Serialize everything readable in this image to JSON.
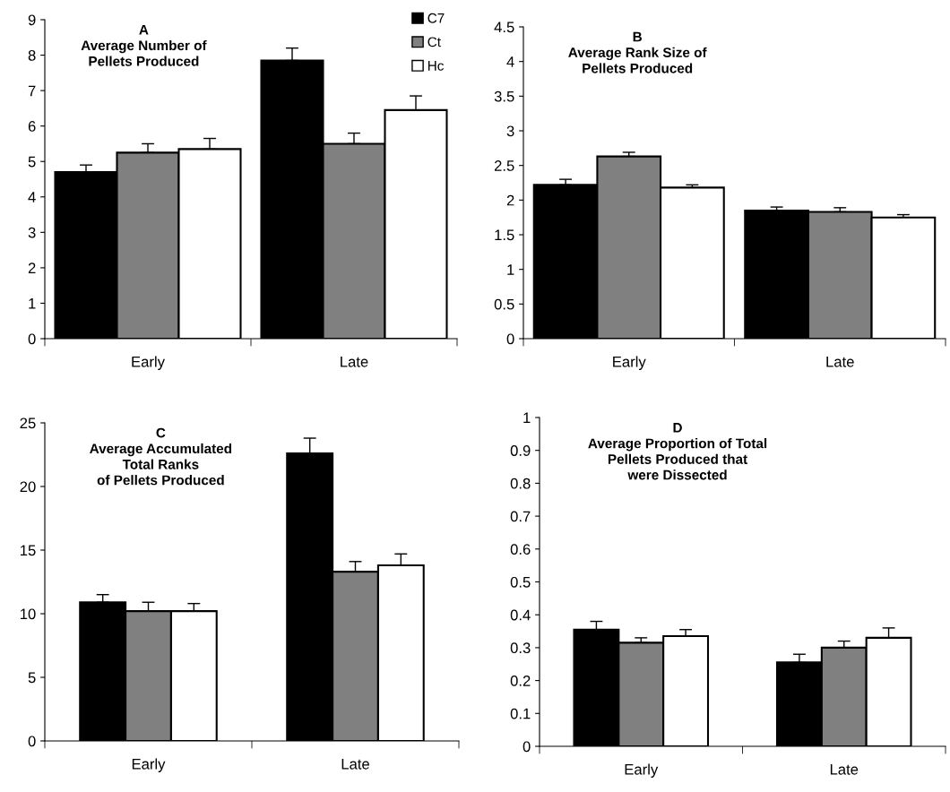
{
  "chart_data": [
    {
      "type": "bar",
      "title": "A\nAverage Number of\nPellets Produced",
      "categories": [
        "Early",
        "Late"
      ],
      "ylim": [
        0,
        9
      ],
      "yticks": [
        0,
        1,
        2,
        3,
        4,
        5,
        6,
        7,
        8,
        9
      ],
      "grid": false,
      "legend": "top right",
      "series": [
        {
          "name": "C7",
          "color": "#000000",
          "values": [
            4.7,
            7.85
          ],
          "errors": [
            [
              4.7,
              4.9
            ],
            [
              7.85,
              8.2
            ]
          ]
        },
        {
          "name": "Ct",
          "color": "#808080",
          "values": [
            5.25,
            5.5
          ],
          "errors": [
            [
              5.25,
              5.5
            ],
            [
              5.5,
              5.8
            ]
          ]
        },
        {
          "name": "Hc",
          "color": "#ffffff",
          "values": [
            5.35,
            6.45
          ],
          "errors": [
            [
              5.35,
              5.65
            ],
            [
              6.45,
              6.85
            ]
          ]
        }
      ]
    },
    {
      "type": "bar",
      "title": "B\nAverage Rank Size of\nPellets Produced",
      "categories": [
        "Early",
        "Late"
      ],
      "ylim": [
        0,
        4.5
      ],
      "yticks": [
        0,
        0.5,
        1,
        1.5,
        2,
        2.5,
        3,
        3.5,
        4,
        4.5
      ],
      "grid": false,
      "series": [
        {
          "color": "#000000",
          "values": [
            2.22,
            1.85
          ],
          "errors": [
            [
              2.22,
              2.3
            ],
            [
              1.85,
              1.9
            ]
          ]
        },
        {
          "color": "#808080",
          "values": [
            2.63,
            1.83
          ],
          "errors": [
            [
              2.63,
              2.69
            ],
            [
              1.83,
              1.89
            ]
          ]
        },
        {
          "color": "#ffffff",
          "values": [
            2.18,
            1.75
          ],
          "errors": [
            [
              2.18,
              2.22
            ],
            [
              1.75,
              1.79
            ]
          ]
        }
      ]
    },
    {
      "type": "bar",
      "title": "C\nAverage Accumulated\nTotal Ranks\nof Pellets Produced",
      "categories": [
        "Early",
        "Late"
      ],
      "ylim": [
        0,
        25
      ],
      "yticks": [
        0,
        5,
        10,
        15,
        20,
        25
      ],
      "grid": false,
      "series": [
        {
          "color": "#000000",
          "values": [
            10.9,
            22.6
          ],
          "errors": [
            [
              10.9,
              11.5
            ],
            [
              22.6,
              23.8
            ]
          ]
        },
        {
          "color": "#808080",
          "values": [
            10.2,
            13.3
          ],
          "errors": [
            [
              10.2,
              10.9
            ],
            [
              13.3,
              14.1
            ]
          ]
        },
        {
          "color": "#ffffff",
          "values": [
            10.2,
            13.8
          ],
          "errors": [
            [
              10.2,
              10.8
            ],
            [
              13.8,
              14.7
            ]
          ]
        }
      ]
    },
    {
      "type": "bar",
      "title": "D\nAverage Proportion of Total\nPellets Produced that\nwere Dissected",
      "categories": [
        "Early",
        "Late"
      ],
      "ylim": [
        0,
        1
      ],
      "yticks": [
        0,
        0.1,
        0.2,
        0.3,
        0.4,
        0.5,
        0.6,
        0.7,
        0.8,
        0.9,
        1
      ],
      "grid": false,
      "series": [
        {
          "color": "#000000",
          "values": [
            0.355,
            0.255
          ],
          "errors": [
            [
              0.355,
              0.38
            ],
            [
              0.255,
              0.28
            ]
          ]
        },
        {
          "color": "#808080",
          "values": [
            0.315,
            0.3
          ],
          "errors": [
            [
              0.315,
              0.33
            ],
            [
              0.3,
              0.32
            ]
          ]
        },
        {
          "color": "#ffffff",
          "values": [
            0.335,
            0.33
          ],
          "errors": [
            [
              0.335,
              0.355
            ],
            [
              0.33,
              0.36
            ]
          ]
        }
      ]
    }
  ]
}
